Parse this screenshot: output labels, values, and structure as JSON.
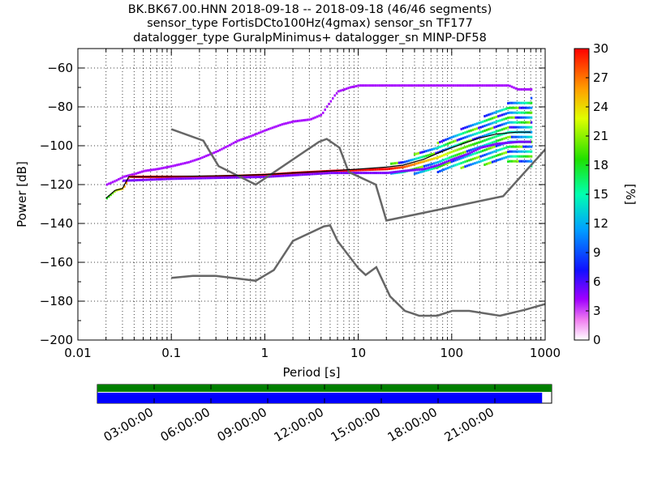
{
  "title_lines": [
    "BK.BK67.00.HNN   2018-09-18 -- 2018-09-18  (46/46 segments)",
    "sensor_type FortisDCto100Hz(4gmax) sensor_sn TF177",
    "datalogger_type GuralpMinimus+ datalogger_sn MINP-DF58"
  ],
  "chart_data": {
    "type": "heatmap",
    "xlabel": "Period [s]",
    "ylabel": "Power [dB]",
    "x_scale": "log",
    "xlim": [
      0.01,
      1000
    ],
    "ylim": [
      -200,
      -50
    ],
    "x_ticks": [
      "0.01",
      "0.1",
      "1",
      "10",
      "100",
      "1000"
    ],
    "y_ticks": [
      "−200",
      "−180",
      "−160",
      "−140",
      "−120",
      "−100",
      "−80",
      "−60"
    ],
    "grid": true,
    "colorbar": {
      "label": "[%]",
      "range": [
        0,
        30
      ],
      "ticks": [
        "0",
        "3",
        "6",
        "9",
        "12",
        "15",
        "18",
        "21",
        "24",
        "27",
        "30"
      ]
    },
    "noise_models": [
      {
        "period": [
          0.1,
          0.17,
          0.22,
          0.3,
          0.8,
          1.25,
          2.0,
          4.3,
          5.0,
          6.0,
          10.0,
          12.0,
          15.6,
          21.9,
          31.6,
          45.0,
          70.0,
          101.0,
          154.0,
          328.0,
          600.0,
          10000.0
        ],
        "power": [
          -168,
          -167,
          -167,
          -167,
          -169.5,
          -164,
          -149,
          -141.5,
          -141,
          -149,
          -163,
          -166.5,
          -162.5,
          -177.5,
          -185,
          -187.5,
          -187.5,
          -185,
          -185,
          -187.5,
          -184.5,
          -168
        ]
      },
      {
        "period": [
          0.1,
          0.22,
          0.32,
          0.8,
          3.8,
          4.6,
          6.3,
          7.9,
          15.4,
          20.0,
          354.8,
          10000.0
        ],
        "power": [
          -91.5,
          -97.4,
          -110.5,
          -120,
          -98,
          -96.5,
          -101,
          -113.5,
          -120,
          -138.5,
          -126,
          -48.5
        ]
      }
    ],
    "pdf_bands": [
      {
        "name": "upper",
        "color_pct": 4,
        "period": [
          0.02,
          0.025,
          0.03,
          0.04,
          0.05,
          0.07,
          0.1,
          0.15,
          0.2,
          0.3,
          0.4,
          0.5,
          0.7,
          1.0,
          1.5,
          2.0,
          3.0,
          4.0,
          4.5,
          5.0,
          5.5,
          6.0,
          7.0,
          8.0,
          10,
          12,
          15,
          20,
          30,
          50,
          100,
          200,
          300,
          400,
          500,
          700
        ],
        "power": [
          -120,
          -118,
          -116,
          -114.5,
          -113,
          -112,
          -110.5,
          -108.5,
          -106.5,
          -103,
          -100,
          -97.5,
          -95,
          -92,
          -89,
          -87.5,
          -86.5,
          -84,
          -80,
          -77,
          -74,
          -72,
          -71,
          -70,
          -69,
          -69,
          -69,
          -69,
          -69,
          -69,
          -69,
          -69,
          -69,
          -69,
          -71,
          -71
        ]
      },
      {
        "name": "main",
        "color_pct": 28,
        "period": [
          0.02,
          0.025,
          0.03,
          0.035,
          0.05,
          0.1,
          0.2,
          0.5,
          1,
          2,
          5,
          10,
          20,
          30,
          50,
          70,
          100,
          150,
          200,
          300,
          400,
          500,
          700
        ],
        "power": [
          -127,
          -123,
          -122,
          -116,
          -116,
          -116,
          -116,
          -115.5,
          -115,
          -114,
          -113,
          -112.5,
          -112,
          -111,
          -108,
          -106,
          -103,
          -100,
          -98,
          -95,
          -93,
          -93,
          -93
        ]
      },
      {
        "name": "lower",
        "color_pct": 5,
        "period": [
          0.03,
          0.1,
          1,
          5,
          10,
          20,
          30,
          50,
          70,
          100,
          150,
          200,
          300,
          500,
          700
        ],
        "power": [
          -118,
          -117,
          -116,
          -114,
          -114,
          -114,
          -113,
          -112,
          -110,
          -107,
          -104,
          -101,
          -99,
          -98,
          -98
        ]
      }
    ],
    "mode_line": {
      "period": [
        0.02,
        0.025,
        0.03,
        0.035,
        0.05,
        0.1,
        0.2,
        0.5,
        1,
        2,
        5,
        10,
        20,
        30,
        50,
        70,
        100,
        150,
        200,
        300,
        500,
        700
      ],
      "power": [
        -127,
        -123,
        -122,
        -116,
        -116,
        -115.8,
        -115.6,
        -115.3,
        -114.8,
        -114,
        -113,
        -112,
        -111,
        -110,
        -107,
        -104,
        -101,
        -98,
        -96,
        -94,
        -93,
        -93
      ]
    }
  },
  "timeline": {
    "tick_labels": [
      "03:00:00",
      "06:00:00",
      "09:00:00",
      "12:00:00",
      "15:00:00",
      "18:00:00",
      "21:00:00"
    ],
    "top_bar_color": "#007f00",
    "bottom_bar_color": "#0000ff",
    "bottom_bar_fraction": 0.979
  }
}
